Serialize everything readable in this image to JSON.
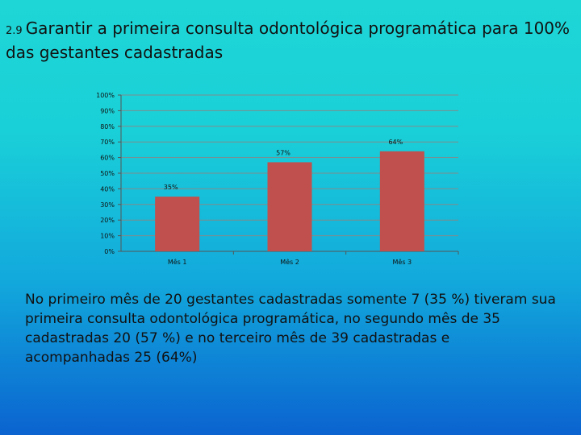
{
  "title": {
    "number": "2.9",
    "text": "Garantir a primeira consulta odontológica programática para 100% das gestantes cadastradas"
  },
  "chart_data": {
    "type": "bar",
    "title": "",
    "xlabel": "",
    "ylabel": "",
    "categories": [
      "Mês 1",
      "Mês 2",
      "Mês 3"
    ],
    "values": [
      35,
      57,
      64
    ],
    "data_labels": [
      "35%",
      "57%",
      "64%"
    ],
    "ylim": [
      0,
      100
    ],
    "yticks": [
      "0%",
      "10%",
      "20%",
      "30%",
      "40%",
      "50%",
      "60%",
      "70%",
      "80%",
      "90%",
      "100%"
    ],
    "grid": true,
    "legend": "none",
    "bar_color": "#c0504d"
  },
  "caption": "No primeiro mês de 20 gestantes cadastradas somente 7 (35 %) tiveram sua primeira consulta odontológica programática, no segundo mês de 35 cadastradas 20 (57 %) e no terceiro mês de 39 cadastradas e acompanhadas 25 (64%)"
}
